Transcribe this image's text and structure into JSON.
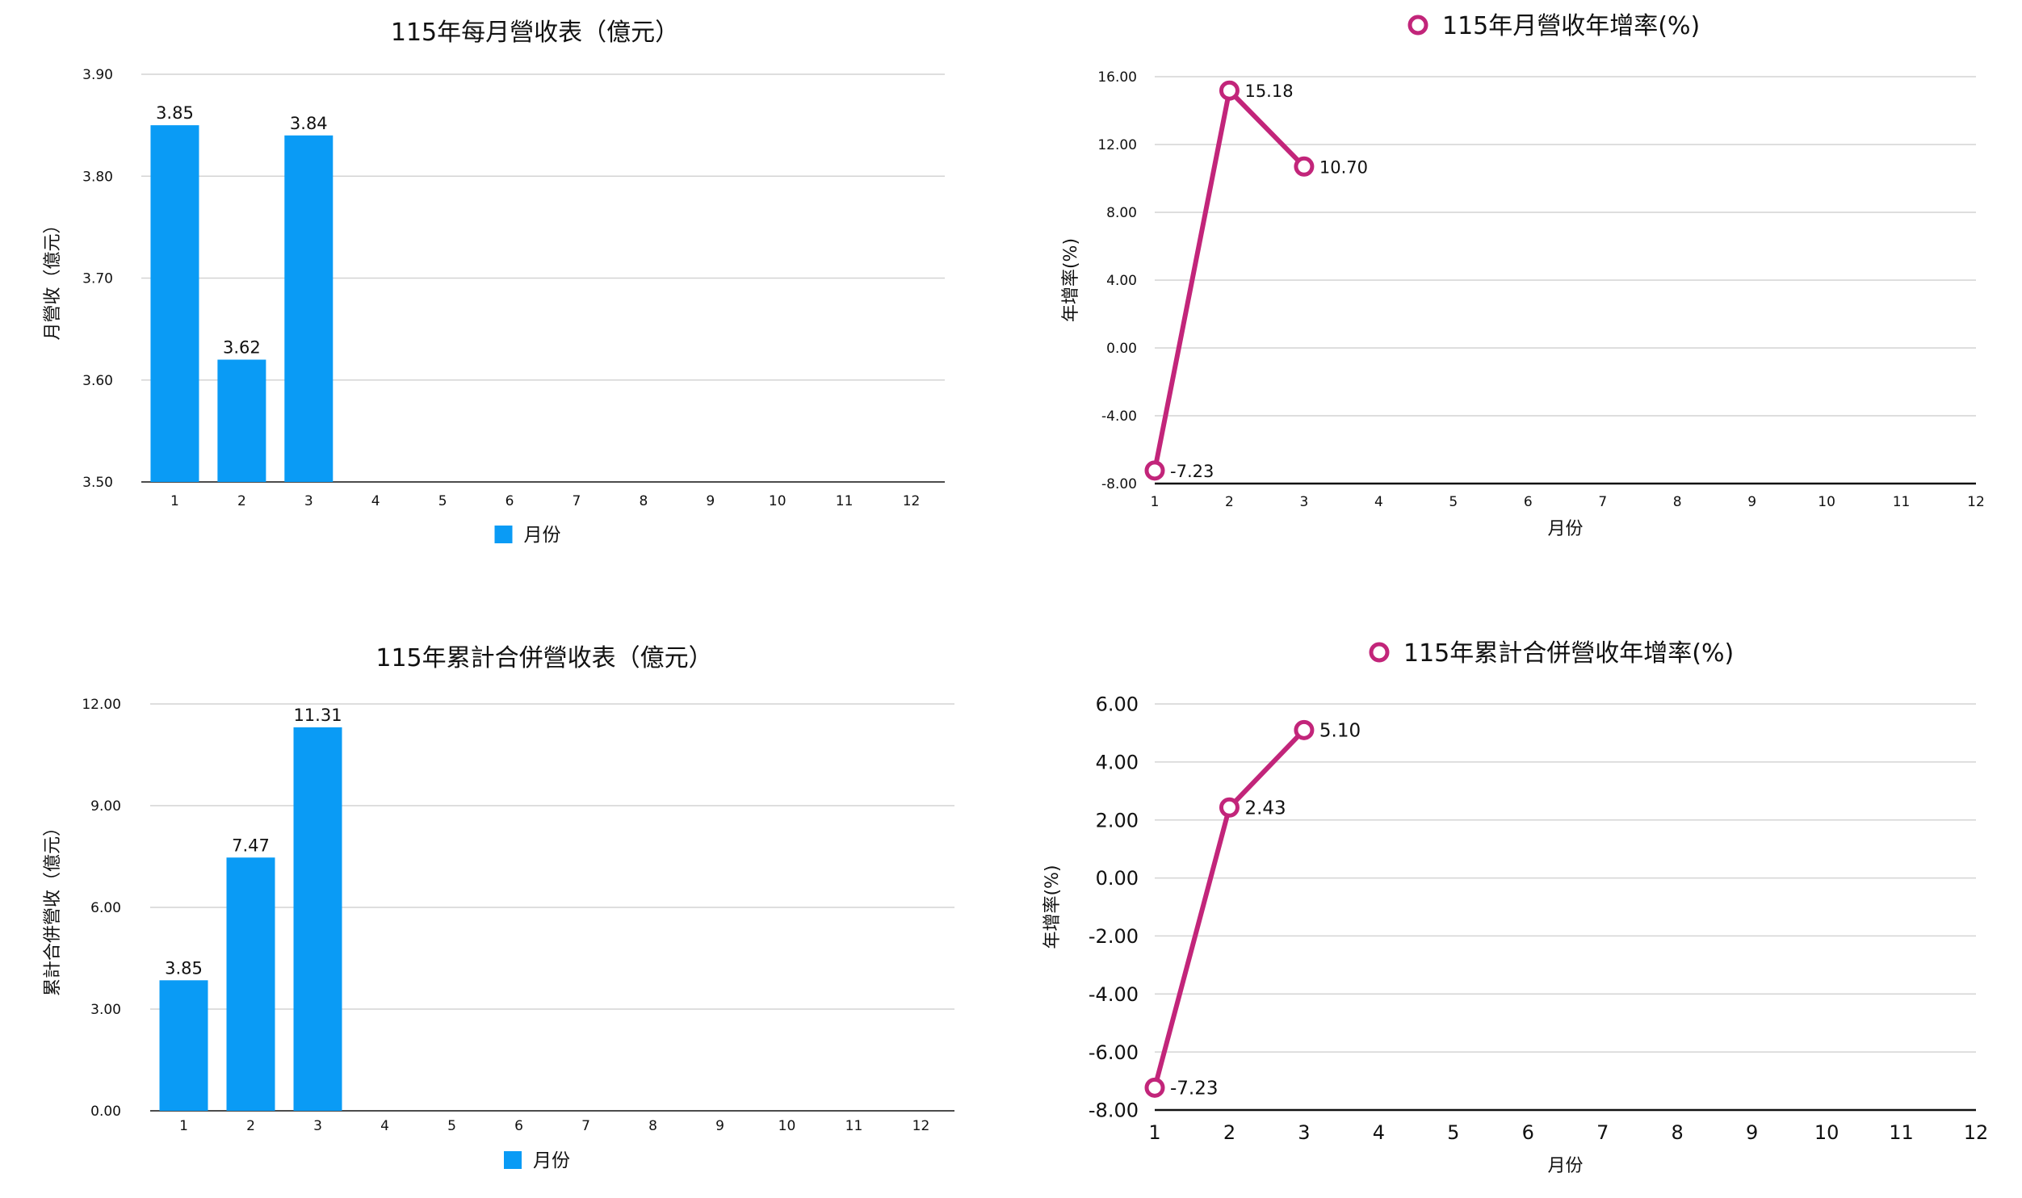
{
  "colors": {
    "bar": "#0a9bf5",
    "line": "#c2257a",
    "grid": "#d4d4d4",
    "axis": "#111111",
    "text": "#111111"
  },
  "chart_data": [
    {
      "id": "monthly-revenue",
      "type": "bar",
      "title": "115年每月營收表（億元）",
      "xlabel": "",
      "ylabel": "月營收（億元）",
      "categories": [
        "1",
        "2",
        "3",
        "4",
        "5",
        "6",
        "7",
        "8",
        "9",
        "10",
        "11",
        "12"
      ],
      "series": [
        {
          "name": "月份",
          "values": [
            3.85,
            3.62,
            3.84,
            null,
            null,
            null,
            null,
            null,
            null,
            null,
            null,
            null
          ]
        }
      ],
      "data_labels": [
        "3.85",
        "3.62",
        "3.84"
      ],
      "yticks": [
        3.5,
        3.6,
        3.7,
        3.8,
        3.9
      ],
      "ytick_labels": [
        "3.50",
        "3.60",
        "3.70",
        "3.80",
        "3.90"
      ],
      "ylim": [
        3.5,
        3.9
      ],
      "grid": true,
      "legend": "bottom"
    },
    {
      "id": "monthly-revenue-yoy",
      "type": "line",
      "title": "",
      "xlabel": "月份",
      "ylabel": "年增率(%)",
      "categories": [
        "1",
        "2",
        "3",
        "4",
        "5",
        "6",
        "7",
        "8",
        "9",
        "10",
        "11",
        "12"
      ],
      "series": [
        {
          "name": "115年月營收年增率(%)",
          "values": [
            -7.23,
            15.18,
            10.7,
            null,
            null,
            null,
            null,
            null,
            null,
            null,
            null,
            null
          ]
        }
      ],
      "data_labels": [
        "-7.23",
        "15.18",
        "10.70"
      ],
      "yticks": [
        -8,
        -4,
        0,
        4,
        8,
        12,
        16
      ],
      "ytick_labels": [
        "-8.00",
        "-4.00",
        "0.00",
        "4.00",
        "8.00",
        "12.00",
        "16.00"
      ],
      "ylim": [
        -8,
        16
      ],
      "grid": true,
      "legend": "top"
    },
    {
      "id": "cumulative-revenue",
      "type": "bar",
      "title": "115年累計合併營收表（億元）",
      "xlabel": "",
      "ylabel": "累計合併營收（億元）",
      "categories": [
        "1",
        "2",
        "3",
        "4",
        "5",
        "6",
        "7",
        "8",
        "9",
        "10",
        "11",
        "12"
      ],
      "series": [
        {
          "name": "月份",
          "values": [
            3.85,
            7.47,
            11.31,
            null,
            null,
            null,
            null,
            null,
            null,
            null,
            null,
            null
          ]
        }
      ],
      "data_labels": [
        "3.85",
        "7.47",
        "11.31"
      ],
      "yticks": [
        0,
        3,
        6,
        9,
        12
      ],
      "ytick_labels": [
        "0.00",
        "3.00",
        "6.00",
        "9.00",
        "12.00"
      ],
      "ylim": [
        0,
        12
      ],
      "grid": true,
      "legend": "bottom"
    },
    {
      "id": "cumulative-revenue-yoy",
      "type": "line",
      "title": "",
      "xlabel": "月份",
      "ylabel": "年增率(%)",
      "categories": [
        "1",
        "2",
        "3",
        "4",
        "5",
        "6",
        "7",
        "8",
        "9",
        "10",
        "11",
        "12"
      ],
      "series": [
        {
          "name": "115年累計合併營收年增率(%)",
          "values": [
            -7.23,
            2.43,
            5.1,
            null,
            null,
            null,
            null,
            null,
            null,
            null,
            null,
            null
          ]
        }
      ],
      "data_labels": [
        "-7.23",
        "2.43",
        "5.10"
      ],
      "yticks": [
        -8,
        -6,
        -4,
        -2,
        0,
        2,
        4,
        6
      ],
      "ytick_labels": [
        "-8.00",
        "-6.00",
        "-4.00",
        "-2.00",
        "0.00",
        "2.00",
        "4.00",
        "6.00"
      ],
      "ylim": [
        -8,
        6
      ],
      "grid": true,
      "legend": "top"
    }
  ]
}
